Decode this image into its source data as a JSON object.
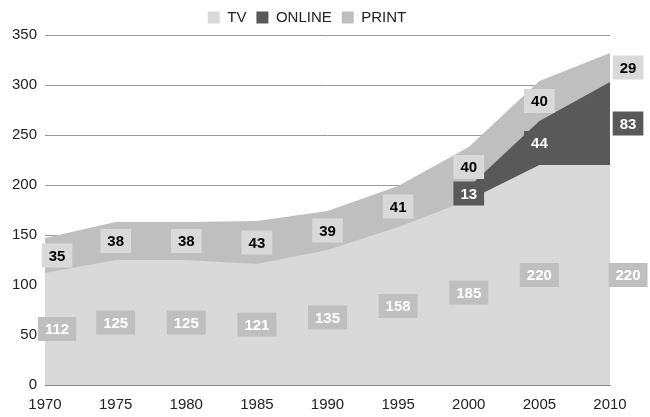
{
  "chart_data": {
    "type": "area",
    "stacked": true,
    "data_labels": true,
    "legend": "top",
    "grid": true,
    "categories": [
      "1970",
      "1975",
      "1980",
      "1985",
      "1990",
      "1995",
      "2000",
      "2005",
      "2010"
    ],
    "series": [
      {
        "name": "TV",
        "color": "#d9d9d9",
        "values": [
          112,
          125,
          125,
          121,
          135,
          158,
          185,
          220,
          220
        ]
      },
      {
        "name": "ONLINE",
        "color": "#595959",
        "values": [
          null,
          null,
          null,
          null,
          null,
          null,
          13,
          44,
          83
        ]
      },
      {
        "name": "PRINT",
        "color": "#bfbfbf",
        "values": [
          35,
          38,
          38,
          43,
          39,
          41,
          40,
          40,
          29
        ]
      }
    ],
    "ylim": [
      0,
      350
    ],
    "yticks": [
      0,
      50,
      100,
      150,
      200,
      250,
      300,
      350
    ]
  }
}
